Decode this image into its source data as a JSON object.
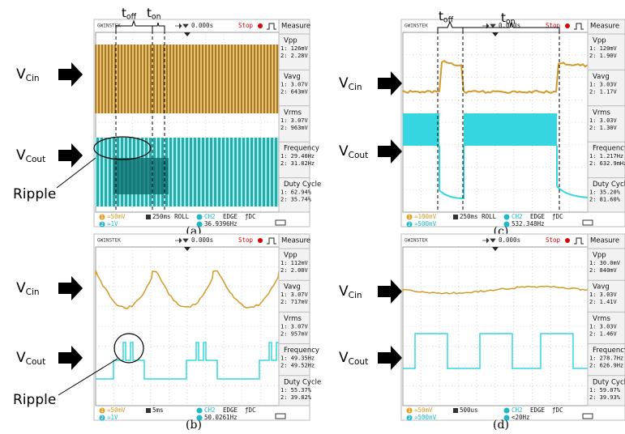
{
  "symbols": {
    "t_off": {
      "main": "t",
      "sub": "off"
    },
    "t_on": {
      "main": "t",
      "sub": "on"
    },
    "v_cin": {
      "main": "V",
      "sub": "Cin"
    },
    "v_cout": {
      "main": "V",
      "sub": "Cout"
    },
    "ripple": "Ripple",
    "channel_ids": [
      "1",
      "2"
    ]
  },
  "panels": [
    {
      "caption": "(a)",
      "brand": "GWINSTEK",
      "trigger_time": "0.000s",
      "status": "Stop",
      "measure_title": "Measure",
      "measurements": [
        {
          "name": "Vpp",
          "ch1": "1: 126mV",
          "ch2": "2: 2.28V"
        },
        {
          "name": "Vavg",
          "ch1": "1: 3.07V",
          "ch2": "2: 643mV"
        },
        {
          "name": "Vrms",
          "ch1": "1: 3.07V",
          "ch2": "2: 963mV"
        },
        {
          "name": "Frequency",
          "ch1": "1: 29.40Hz",
          "ch2": "2: 31.82Hz"
        },
        {
          "name": "Duty Cycle",
          "ch1": "1: 62.94%",
          "ch2": "2: 35.74%"
        }
      ],
      "footer": {
        "ch1_scale": "≃50mV",
        "ch2_scale": "≃1V",
        "timebase": "250ms ROLL",
        "trigger_source": "CH2",
        "trigger_type": "EDGE",
        "coupling": "ƒDC",
        "frequency": "36.9396Hz"
      }
    },
    {
      "caption": "(b)",
      "brand": "GWINSTEK",
      "trigger_time": "0.000s",
      "status": "Stop",
      "measure_title": "Measure",
      "measurements": [
        {
          "name": "Vpp",
          "ch1": "1: 112mV",
          "ch2": "2: 2.08V"
        },
        {
          "name": "Vavg",
          "ch1": "1: 3.07V",
          "ch2": "2: 717mV"
        },
        {
          "name": "Vrms",
          "ch1": "1: 3.07V",
          "ch2": "2: 957mV"
        },
        {
          "name": "Frequency",
          "ch1": "1: 49.35Hz",
          "ch2": "2: 49.52Hz"
        },
        {
          "name": "Duty Cycle",
          "ch1": "1: 55.37%",
          "ch2": "2: 39.82%"
        }
      ],
      "footer": {
        "ch1_scale": "≃50mV",
        "ch2_scale": "≃1V",
        "timebase": "5ms",
        "trigger_source": "CH2",
        "trigger_type": "EDGE",
        "coupling": "ƒDC",
        "frequency": "50.0261Hz"
      }
    },
    {
      "caption": "(c)",
      "brand": "GWINSTEK",
      "trigger_time": "0.000s",
      "status": "Stop",
      "measure_title": "Measure",
      "measurements": [
        {
          "name": "Vpp",
          "ch1": "1: 120mV",
          "ch2": "2: 1.90V"
        },
        {
          "name": "Vavg",
          "ch1": "1: 3.03V",
          "ch2": "2: 1.17V"
        },
        {
          "name": "Vrms",
          "ch1": "1: 3.03V",
          "ch2": "2: 1.30V"
        },
        {
          "name": "Frequency",
          "ch1": "1: 1.217Hz",
          "ch2": "2: 632.9mHz"
        },
        {
          "name": "Duty Cycle",
          "ch1": "1: 35.20%",
          "ch2": "2: 81.60%"
        }
      ],
      "footer": {
        "ch1_scale": "≃100mV",
        "ch2_scale": "≃500mV",
        "timebase": "250ms ROLL",
        "trigger_source": "CH2",
        "trigger_type": "EDGE",
        "coupling": "ƒDC",
        "frequency": "532.348Hz"
      }
    },
    {
      "caption": "(d)",
      "brand": "GWINSTEK",
      "trigger_time": "0.000s",
      "status": "Stop",
      "measure_title": "Measure",
      "measurements": [
        {
          "name": "Vpp",
          "ch1": "1: 30.0mV",
          "ch2": "2: 840mV"
        },
        {
          "name": "Vavg",
          "ch1": "1: 3.03V",
          "ch2": "2: 1.41V"
        },
        {
          "name": "Vrms",
          "ch1": "1: 3.03V",
          "ch2": "2: 1.46V"
        },
        {
          "name": "Frequency",
          "ch1": "1: 278.7Hz",
          "ch2": "2: 626.9Hz"
        },
        {
          "name": "Duty Cycle",
          "ch1": "1: 59.07%",
          "ch2": "2: 39.93%"
        }
      ],
      "footer": {
        "ch1_scale": "≃50mV",
        "ch2_scale": "≃500mV",
        "timebase": "500us",
        "trigger_source": "CH2",
        "trigger_type": "EDGE",
        "coupling": "ƒDC",
        "frequency": "<20Hz"
      }
    }
  ]
}
